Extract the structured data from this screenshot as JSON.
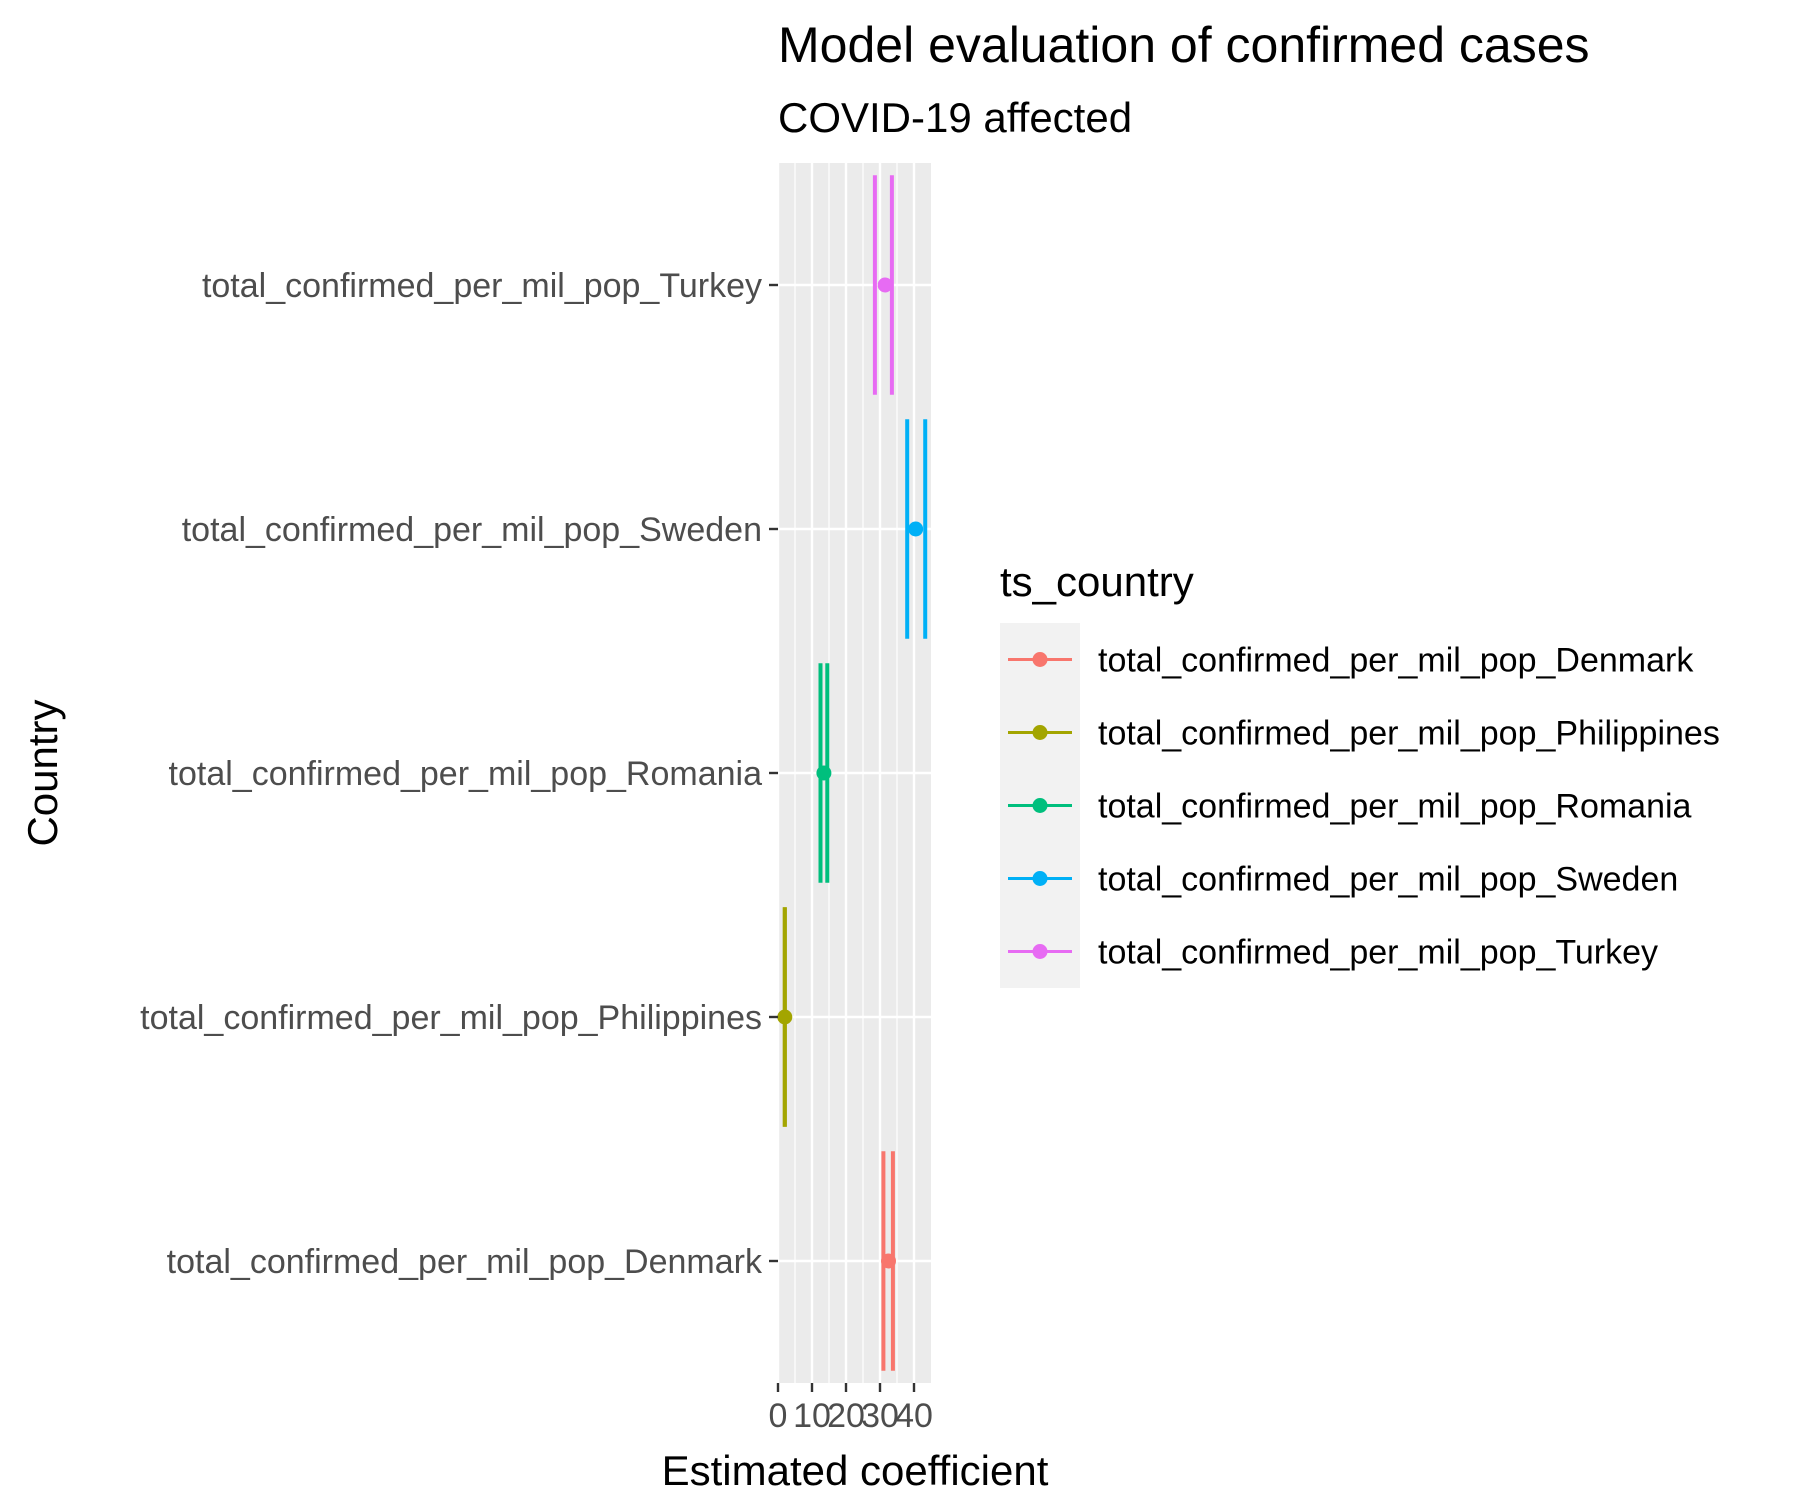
{
  "chart_data": {
    "type": "errorbar",
    "title": "Model evaluation of confirmed cases",
    "subtitle": "COVID-19 affected",
    "xlabel": "Estimated coefficient",
    "ylabel": "Country",
    "xlim": [
      0,
      45
    ],
    "x_ticks": [
      0,
      10,
      20,
      30,
      40
    ],
    "x_tick_labels": [
      "0",
      "10",
      "20",
      "30",
      "40"
    ],
    "grid": true,
    "categories": [
      "total_confirmed_per_mil_pop_Denmark",
      "total_confirmed_per_mil_pop_Philippines",
      "total_confirmed_per_mil_pop_Romania",
      "total_confirmed_per_mil_pop_Sweden",
      "total_confirmed_per_mil_pop_Turkey"
    ],
    "series": [
      {
        "name": "total_confirmed_per_mil_pop_Denmark",
        "estimate": 32.5,
        "low": 31.0,
        "high": 33.8,
        "color": "#F8766D"
      },
      {
        "name": "total_confirmed_per_mil_pop_Philippines",
        "estimate": 2.0,
        "low": 2.0,
        "high": 2.0,
        "color": "#A3A500"
      },
      {
        "name": "total_confirmed_per_mil_pop_Romania",
        "estimate": 13.5,
        "low": 12.5,
        "high": 14.5,
        "color": "#00BF7D"
      },
      {
        "name": "total_confirmed_per_mil_pop_Sweden",
        "estimate": 40.5,
        "low": 38.0,
        "high": 43.3,
        "color": "#00B0F6"
      },
      {
        "name": "total_confirmed_per_mil_pop_Turkey",
        "estimate": 31.5,
        "low": 28.5,
        "high": 33.5,
        "color": "#E76BF3"
      }
    ],
    "legend": {
      "title": "ts_country",
      "position": "right"
    }
  }
}
